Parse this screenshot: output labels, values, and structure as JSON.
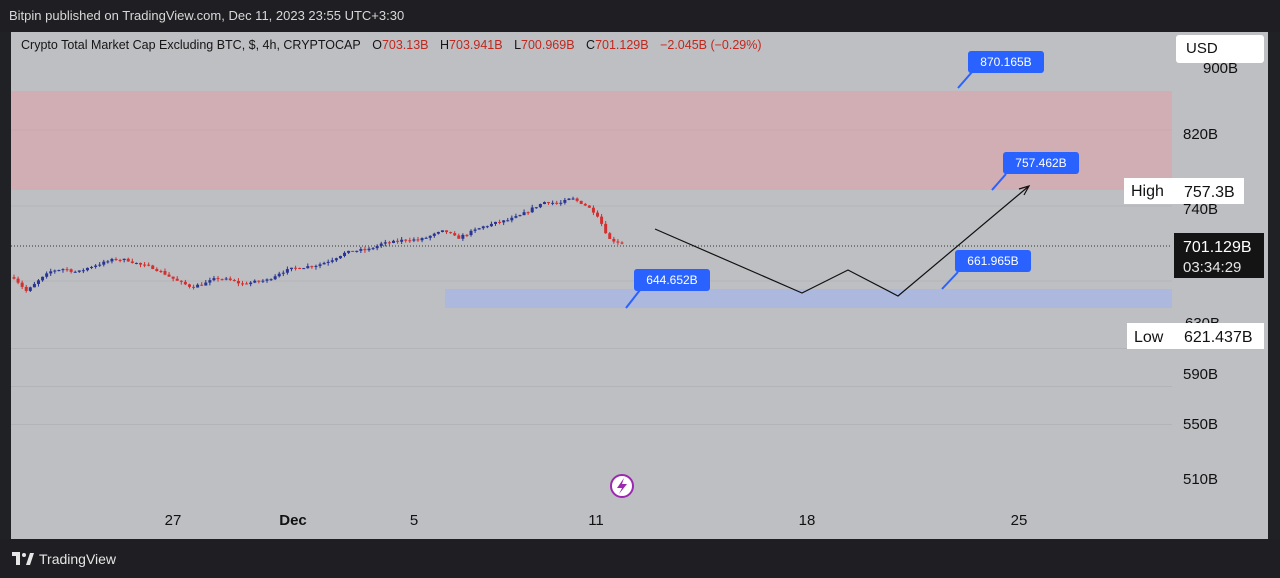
{
  "header": {
    "text": "Bitpin published on TradingView.com, Dec 11, 2023 23:55 UTC+3:30"
  },
  "legend": {
    "title": "Crypto Total Market Cap Excluding BTC, $, 4h, CRYPTOCAP",
    "o_label": "O",
    "o_value": "703.13B",
    "h_label": "H",
    "h_value": "703.941B",
    "l_label": "L",
    "l_value": "700.969B",
    "c_label": "C",
    "c_value": "701.129B",
    "change": "−2.045B (−0.29%)"
  },
  "currency_button": "USD",
  "footer": {
    "brand": "TradingView"
  },
  "colors": {
    "up": "#283593",
    "down": "#d32f2f",
    "resistance_zone": "#e79aa1",
    "support_zone": "#9db2f4",
    "callout": "#2962ff"
  },
  "chart_data": {
    "type": "candlestick",
    "title": "Crypto Total Market Cap Excluding BTC, $, 4h, CRYPTOCAP",
    "y_unit": "B",
    "y_ticks": [
      "900B",
      "820B",
      "740B",
      "630B",
      "590B",
      "550B",
      "510B"
    ],
    "x_ticks": [
      "27",
      "Dec",
      "5",
      "11",
      "18",
      "25"
    ],
    "price_labels": [
      {
        "name": "High",
        "value": "757.3B"
      },
      {
        "name": "Low",
        "value": "621.437B"
      }
    ],
    "last_price": {
      "value": "701.129B",
      "countdown": "03:34:29"
    },
    "callouts": [
      "870.165B",
      "757.462B",
      "661.965B",
      "644.652B"
    ],
    "zones": [
      {
        "type": "resistance",
        "from": 757.3,
        "to": 870
      },
      {
        "type": "support",
        "from": 652,
        "to": 661
      }
    ],
    "closes_path": [
      665,
      650,
      662,
      672,
      674,
      670,
      676,
      680,
      684,
      683,
      678,
      675,
      668,
      660,
      655,
      658,
      664,
      662,
      658,
      660,
      662,
      670,
      674,
      676,
      678,
      683,
      690,
      693,
      694,
      700,
      702,
      705,
      704,
      709,
      714,
      706,
      712,
      718,
      722,
      725,
      730,
      738,
      745,
      742,
      748,
      742,
      732,
      705,
      701
    ],
    "projection": [
      "701",
      "665",
      "684",
      "665",
      "757.462"
    ]
  }
}
